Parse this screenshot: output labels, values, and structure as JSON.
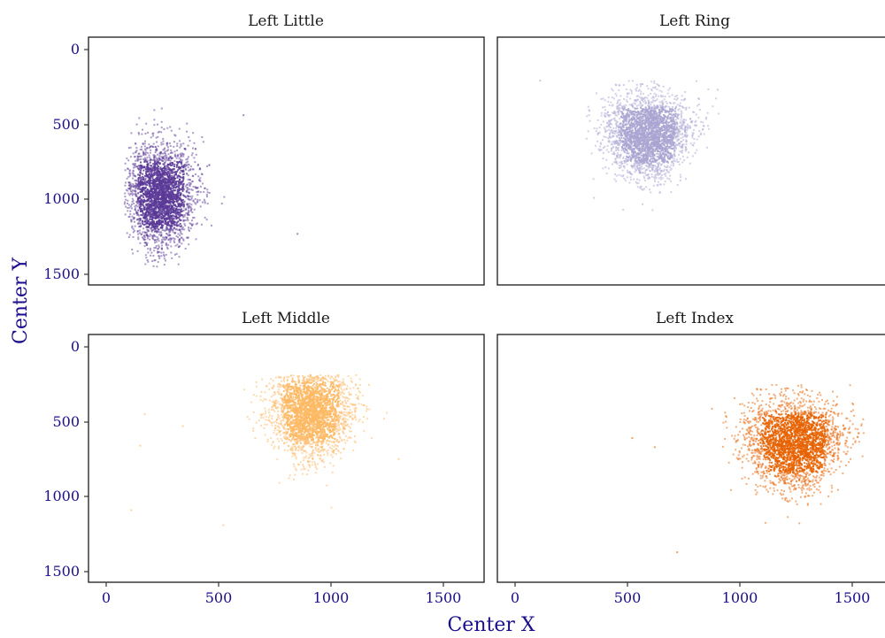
{
  "chart_data": {
    "type": "scatter",
    "xlabel": "Center X",
    "ylabel": "Center Y",
    "xlim": [
      -80,
      1680
    ],
    "ylim": [
      1580,
      -70
    ],
    "y_reversed": true,
    "x_ticks": [
      0,
      500,
      1000,
      1500
    ],
    "y_ticks": [
      0,
      500,
      1000,
      1500
    ],
    "x_tick_labels": [
      "0",
      "500",
      "1000",
      "1500"
    ],
    "y_tick_labels": [
      "0",
      "500",
      "1000",
      "1500"
    ],
    "facets": [
      {
        "title": "Left Little",
        "color": "#5a3a96",
        "center_x": 240,
        "center_y": 980,
        "spread_x": 80,
        "spread_y": 170,
        "x_range": [
          80,
          600
        ],
        "y_range": [
          360,
          1460
        ],
        "outliers": [
          [
            610,
            450
          ],
          [
            850,
            1240
          ]
        ]
      },
      {
        "title": "Left Ring",
        "color": "#a9a5d1",
        "center_x": 590,
        "center_y": 580,
        "spread_x": 95,
        "spread_y": 140,
        "x_range": [
          300,
          960
        ],
        "y_range": [
          220,
          1220
        ],
        "outliers": [
          [
            110,
            220
          ],
          [
            900,
            280
          ],
          [
            350,
            1000
          ]
        ]
      },
      {
        "title": "Left Middle",
        "color": "#fdb863",
        "center_x": 910,
        "center_y": 440,
        "spread_x": 95,
        "spread_y": 150,
        "x_range": [
          560,
          1340
        ],
        "y_range": [
          200,
          1230
        ],
        "outliers": [
          [
            110,
            1100
          ],
          [
            170,
            460
          ],
          [
            150,
            670
          ],
          [
            520,
            1200
          ],
          [
            1300,
            760
          ],
          [
            340,
            540
          ]
        ]
      },
      {
        "title": "Left Index",
        "color": "#e66101",
        "center_x": 1240,
        "center_y": 650,
        "spread_x": 110,
        "spread_y": 150,
        "x_range": [
          820,
          1550
        ],
        "y_range": [
          260,
          1380
        ],
        "outliers": [
          [
            520,
            620
          ],
          [
            720,
            1380
          ],
          [
            620,
            680
          ]
        ]
      }
    ]
  }
}
